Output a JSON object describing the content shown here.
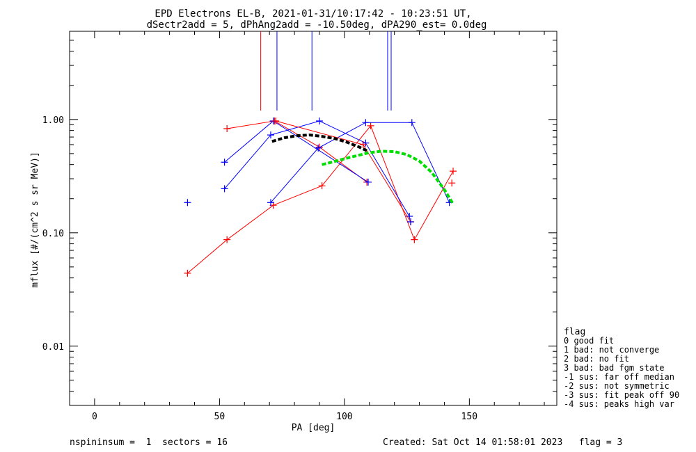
{
  "chart_data": {
    "type": "line",
    "title": "EPD Electrons EL-B, 2021-01-31/10:17:42 - 10:23:51 UT,",
    "subtitle": "dSectr2add = 5, dPhAng2add = -10.50deg, dPA290_est=   0.0deg",
    "xlabel": "PA [deg]",
    "ylabel": "mflux [#/(cm^2 s sr MeV)]",
    "xlim": [
      -10,
      185
    ],
    "ylim": [
      0.003,
      6
    ],
    "yscale": "log",
    "xticks": [
      {
        "value": 0,
        "label": "0"
      },
      {
        "value": 50,
        "label": "50"
      },
      {
        "value": 100,
        "label": "100"
      },
      {
        "value": 150,
        "label": "150"
      }
    ],
    "yticks": [
      {
        "value": 0.01,
        "label": "0.01"
      },
      {
        "value": 0.1,
        "label": "0.10"
      },
      {
        "value": 1.0,
        "label": "1.00"
      }
    ],
    "series": [
      {
        "color": "#ff0000",
        "style": "line-plus",
        "points": [
          [
            37.2,
            0.044
          ],
          [
            53,
            0.087
          ],
          [
            71.5,
            0.175
          ],
          [
            91,
            0.26
          ],
          [
            110.5,
            0.88
          ],
          [
            128,
            0.087
          ],
          [
            143.5,
            0.35
          ]
        ]
      },
      {
        "color": "#ff0000",
        "style": "line-plus",
        "points": [
          [
            53,
            0.83
          ],
          [
            72,
            0.97
          ],
          [
            90,
            0.57
          ],
          [
            109,
            0.28
          ]
        ]
      },
      {
        "color": "#0000ff",
        "style": "line-plus",
        "points": [
          [
            52,
            0.42
          ],
          [
            71.5,
            0.97
          ],
          [
            109.5,
            0.28
          ]
        ]
      },
      {
        "color": "#0000ff",
        "style": "line-plus",
        "points": [
          [
            52,
            0.245
          ],
          [
            70.5,
            0.73
          ],
          [
            90,
            0.97
          ],
          [
            108.5,
            0.62
          ],
          [
            126,
            0.14
          ]
        ]
      },
      {
        "color": "#0000ff",
        "style": "line-plus",
        "points": [
          [
            70.5,
            0.185
          ],
          [
            89.5,
            0.56
          ],
          [
            108.5,
            0.94
          ],
          [
            127,
            0.94
          ],
          [
            142,
            0.185
          ]
        ]
      },
      {
        "color": "#ff0000",
        "style": "line-plus",
        "points": [
          [
            72.5,
            0.97
          ],
          [
            107.5,
            0.6
          ],
          [
            126.5,
            0.125
          ]
        ]
      },
      {
        "color": "#0000ff",
        "style": "plus",
        "points": [
          [
            37.2,
            0.185
          ],
          [
            126.5,
            0.125
          ]
        ]
      },
      {
        "color": "#ff0000",
        "style": "plus",
        "points": [
          [
            143,
            0.275
          ]
        ]
      },
      {
        "color": "#000000",
        "style": "dashed-fit",
        "points": [
          [
            71,
            0.64
          ],
          [
            76,
            0.69
          ],
          [
            81,
            0.72
          ],
          [
            86,
            0.73
          ],
          [
            91,
            0.71
          ],
          [
            96,
            0.68
          ],
          [
            101,
            0.63
          ],
          [
            106,
            0.57
          ],
          [
            109,
            0.53
          ]
        ]
      },
      {
        "color": "#00dd00",
        "style": "dashed-fit",
        "points": [
          [
            91,
            0.4
          ],
          [
            95,
            0.42
          ],
          [
            100,
            0.45
          ],
          [
            105,
            0.48
          ],
          [
            110,
            0.51
          ],
          [
            115,
            0.525
          ],
          [
            120,
            0.52
          ],
          [
            125,
            0.49
          ],
          [
            130,
            0.43
          ],
          [
            135,
            0.34
          ],
          [
            140,
            0.24
          ],
          [
            143.5,
            0.18
          ]
        ]
      }
    ],
    "markers": [
      {
        "x": 66.5,
        "color": "#ff0000"
      },
      {
        "x": 73,
        "color": "#0000ff"
      },
      {
        "x": 87,
        "color": "#0000ff"
      },
      {
        "x": 117.3,
        "color": "#0000ff"
      },
      {
        "x": 118.7,
        "color": "#0000ff"
      }
    ],
    "legend": {
      "placement": "right",
      "title": "flag",
      "items": [
        " 0 good fit",
        " 1 bad: not converge",
        " 2 bad: no fit",
        " 3 bad: bad fgm state",
        "-1 sus: far off median",
        "-2 sus: not symmetric",
        "-3 sus: fit peak off 90",
        "-4 sus: peaks high var"
      ]
    },
    "footer": {
      "left": "nspininsum =  1  sectors = 16",
      "right": "Created: Sat Oct 14 01:58:01 2023   flag = 3"
    }
  }
}
